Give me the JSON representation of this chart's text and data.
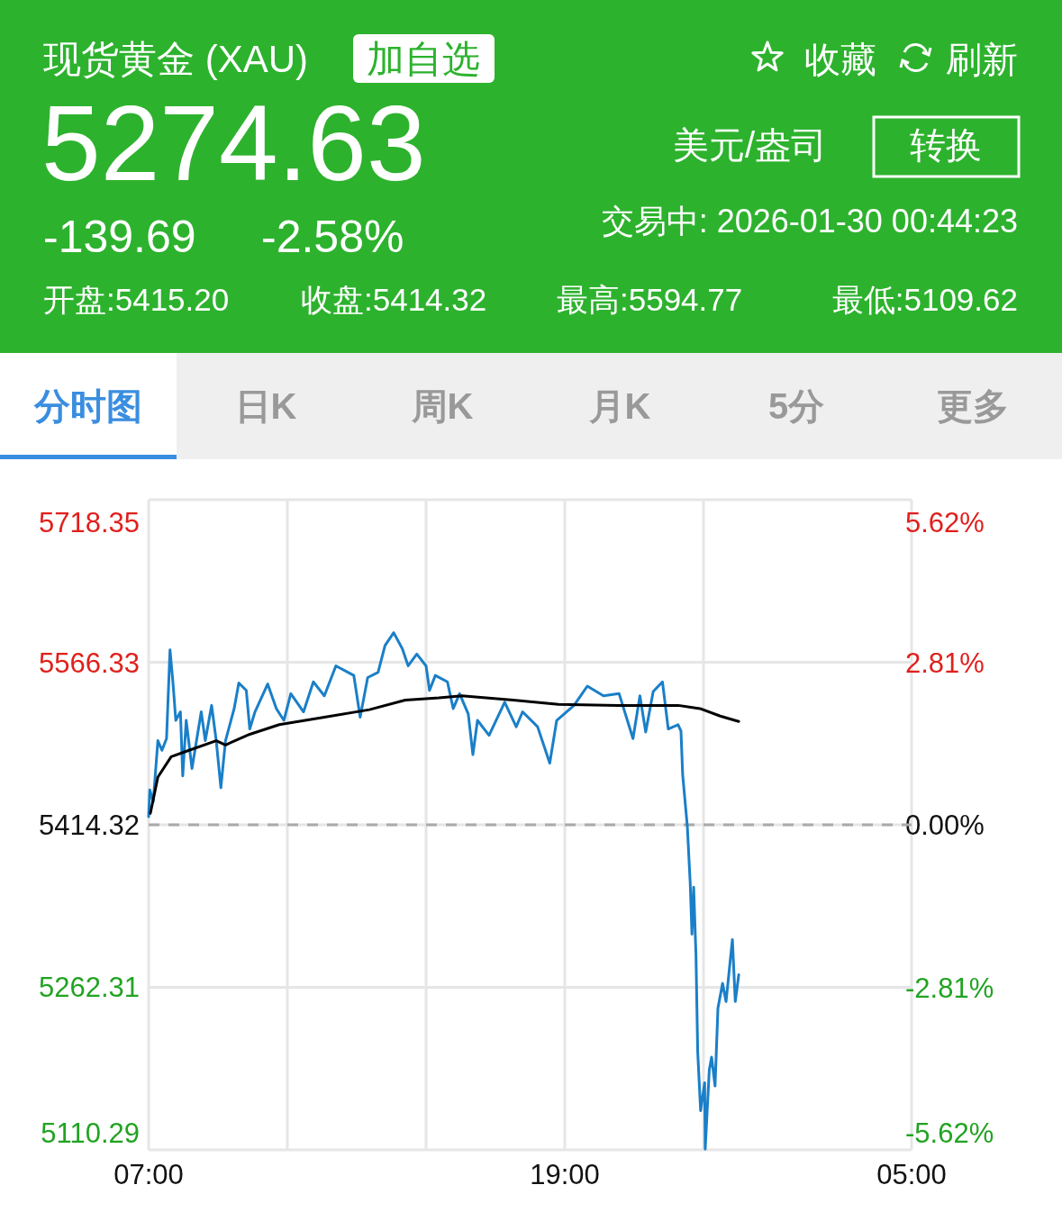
{
  "chart_data": {
    "type": "line",
    "title": "现货黄金 (XAU)",
    "annotations": [
      "加自选",
      "收藏",
      "刷新",
      "5274.63",
      "美元/盎司",
      "转换",
      "-139.69",
      "-2.58%",
      "交易中:  2026-01-30 00:44:23",
      "开盘:5415.20",
      "收盘:5414.32",
      "最高:5594.77",
      "最低:5109.62",
      "分时图",
      "日K",
      "周K",
      "月K",
      "5分",
      "更多"
    ],
    "xlim": [
      "2026-01-29T07:00",
      "2026-01-30T05:00"
    ],
    "xticks": [
      {
        "value": "2026-01-29T07:00",
        "label": "07:00"
      },
      {
        "value": "2026-01-29T11:00",
        "label": null
      },
      {
        "value": "2026-01-29T15:00",
        "label": null
      },
      {
        "value": "2026-01-29T19:00",
        "label": "19:00"
      },
      {
        "value": "2026-01-29T23:00",
        "label": null
      },
      {
        "value": "2026-01-30T05:00",
        "label": "05:00"
      }
    ],
    "ylim": [
      5110.29,
      5718.35
    ],
    "yticks": [
      5110.29,
      5262.31,
      5414.32,
      5566.33,
      5718.35
    ],
    "y2lim": [
      -5.62,
      5.62
    ],
    "y2ticks": [
      {
        "value": -5.62,
        "label": "-5.62%"
      },
      {
        "value": -2.81,
        "label": "-2.81%"
      },
      {
        "value": 0,
        "label": "0.00%"
      },
      {
        "value": 2.81,
        "label": "2.81%"
      },
      {
        "value": 5.62,
        "label": "5.62%"
      }
    ],
    "grid": true,
    "ref_lines": [
      {
        "axis": "y",
        "value": 5414.32,
        "line_style": "dashed",
        "color": "#aaaaaa"
      }
    ],
    "series": [
      {
        "color": "#1a7fc8",
        "x": [
          "2026-01-29T07:00",
          "2026-01-29T07:02",
          "2026-01-29T07:08",
          "2026-01-29T07:16",
          "2026-01-29T07:23",
          "2026-01-29T07:31",
          "2026-01-29T07:37",
          "2026-01-29T07:42",
          "2026-01-29T07:47",
          "2026-01-29T07:55",
          "2026-01-29T07:59",
          "2026-01-29T08:05",
          "2026-01-29T08:15",
          "2026-01-29T08:31",
          "2026-01-29T08:38",
          "2026-01-29T08:49",
          "2026-01-29T08:57",
          "2026-01-29T09:05",
          "2026-01-29T09:13",
          "2026-01-29T09:28",
          "2026-01-29T09:36",
          "2026-01-29T09:49",
          "2026-01-29T09:55",
          "2026-01-29T10:04",
          "2026-01-29T10:26",
          "2026-01-29T10:41",
          "2026-01-29T10:54",
          "2026-01-29T11:06",
          "2026-01-29T11:28",
          "2026-01-29T11:45",
          "2026-01-29T12:04",
          "2026-01-29T12:24",
          "2026-01-29T12:55",
          "2026-01-29T13:06",
          "2026-01-29T13:19",
          "2026-01-29T13:37",
          "2026-01-29T13:49",
          "2026-01-29T14:04",
          "2026-01-29T14:19",
          "2026-01-29T14:29",
          "2026-01-29T14:44",
          "2026-01-29T15:00",
          "2026-01-29T15:06",
          "2026-01-29T15:16",
          "2026-01-29T15:37",
          "2026-01-29T15:47",
          "2026-01-29T15:58",
          "2026-01-29T16:13",
          "2026-01-29T16:21",
          "2026-01-29T16:29",
          "2026-01-29T16:49",
          "2026-01-29T17:16",
          "2026-01-29T17:36",
          "2026-01-29T17:47",
          "2026-01-29T18:13",
          "2026-01-29T18:34",
          "2026-01-29T18:46",
          "2026-01-29T19:16",
          "2026-01-29T19:39",
          "2026-01-29T20:07",
          "2026-01-29T20:34",
          "2026-01-29T20:58",
          "2026-01-29T21:10",
          "2026-01-29T21:20",
          "2026-01-29T21:33",
          "2026-01-29T21:49",
          "2026-01-29T21:59",
          "2026-01-29T22:16",
          "2026-01-29T22:21",
          "2026-01-29T22:24",
          "2026-01-29T22:32",
          "2026-01-29T22:37",
          "2026-01-29T22:40",
          "2026-01-29T22:43",
          "2026-01-29T22:47",
          "2026-01-29T22:50",
          "2026-01-29T22:55",
          "2026-01-29T23:02",
          "2026-01-29T23:03",
          "2026-01-29T23:10",
          "2026-01-29T23:14",
          "2026-01-29T23:20",
          "2026-01-29T23:25",
          "2026-01-29T23:33",
          "2026-01-29T23:39",
          "2026-01-29T23:50",
          "2026-01-29T23:55",
          "2026-01-30T00:01"
        ],
        "values": [
          5422,
          5447,
          5436,
          5493,
          5484,
          5495,
          5578,
          5548,
          5512,
          5520,
          5460,
          5512,
          5467,
          5520,
          5493,
          5526,
          5493,
          5449,
          5493,
          5523,
          5547,
          5540,
          5504,
          5520,
          5546,
          5523,
          5512,
          5537,
          5520,
          5548,
          5535,
          5563,
          5554,
          5515,
          5552,
          5557,
          5582,
          5594,
          5579,
          5563,
          5574,
          5563,
          5540,
          5554,
          5548,
          5523,
          5537,
          5518,
          5480,
          5512,
          5498,
          5529,
          5506,
          5520,
          5506,
          5472,
          5512,
          5526,
          5544,
          5535,
          5537,
          5495,
          5535,
          5501,
          5539,
          5548,
          5504,
          5508,
          5502,
          5461,
          5413,
          5360,
          5312,
          5356,
          5292,
          5202,
          5147,
          5173,
          5111,
          5185,
          5197,
          5170,
          5243,
          5266,
          5249,
          5307,
          5249,
          5274
        ]
      },
      {
        "color": "#000000",
        "x": [
          "2026-01-29T07:03",
          "2026-01-29T07:16",
          "2026-01-29T07:39",
          "2026-01-29T08:10",
          "2026-01-29T08:57",
          "2026-01-29T09:13",
          "2026-01-29T09:55",
          "2026-01-29T10:46",
          "2026-01-29T12:04",
          "2026-01-29T13:22",
          "2026-01-29T14:24",
          "2026-01-29T15:22",
          "2026-01-29T16:02",
          "2026-01-29T17:31",
          "2026-01-29T18:49",
          "2026-01-29T20:34",
          "2026-01-29T22:16",
          "2026-01-29T22:54",
          "2026-01-29T23:29",
          "2026-01-30T00:01"
        ],
        "values": [
          5425,
          5459,
          5478,
          5484,
          5493,
          5489,
          5499,
          5508,
          5515,
          5522,
          5531,
          5533,
          5535,
          5531,
          5527,
          5526,
          5526,
          5523,
          5516,
          5511
        ]
      }
    ]
  }
}
